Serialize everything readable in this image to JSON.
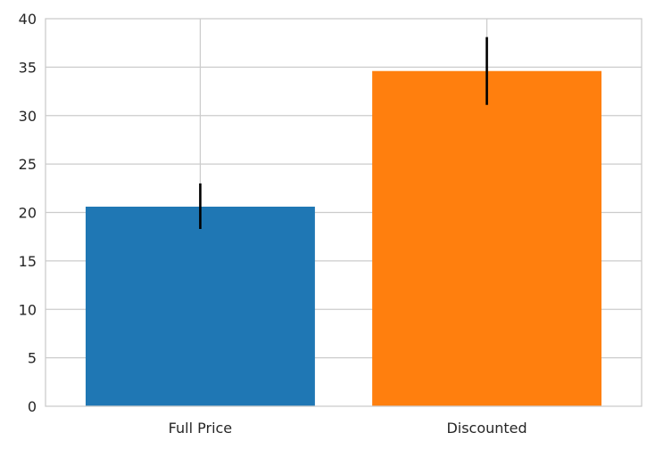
{
  "chart_data": {
    "type": "bar",
    "categories": [
      "Full Price",
      "Discounted"
    ],
    "values": [
      20.6,
      34.6
    ],
    "error_bars": [
      {
        "lower": 18.3,
        "upper": 23.0
      },
      {
        "lower": 31.1,
        "upper": 38.1
      }
    ],
    "colors": [
      "#1f77b4",
      "#ff7f0e"
    ],
    "ylim": [
      0,
      40
    ],
    "yticks": [
      0,
      5,
      10,
      15,
      20,
      25,
      30,
      35,
      40
    ],
    "grid": true,
    "legend": "none"
  }
}
